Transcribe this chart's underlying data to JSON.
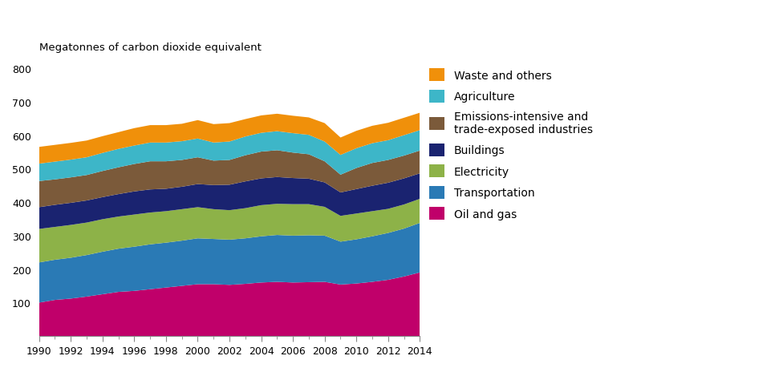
{
  "years": [
    1990,
    1991,
    1992,
    1993,
    1994,
    1995,
    1996,
    1997,
    1998,
    1999,
    2000,
    2001,
    2002,
    2003,
    2004,
    2005,
    2006,
    2007,
    2008,
    2009,
    2010,
    2011,
    2012,
    2013,
    2014
  ],
  "oil_and_gas": [
    100,
    108,
    112,
    118,
    125,
    132,
    135,
    140,
    145,
    150,
    155,
    155,
    153,
    156,
    160,
    162,
    160,
    161,
    162,
    154,
    157,
    162,
    168,
    178,
    190
  ],
  "transportation": [
    120,
    120,
    122,
    124,
    127,
    129,
    132,
    134,
    134,
    135,
    137,
    135,
    135,
    136,
    138,
    140,
    140,
    140,
    138,
    128,
    132,
    136,
    140,
    143,
    148
  ],
  "electricity": [
    100,
    98,
    98,
    97,
    97,
    96,
    96,
    95,
    94,
    94,
    93,
    89,
    88,
    90,
    93,
    93,
    94,
    93,
    86,
    77,
    77,
    75,
    72,
    72,
    72
  ],
  "buildings": [
    65,
    66,
    66,
    66,
    66,
    67,
    69,
    69,
    67,
    67,
    69,
    72,
    76,
    80,
    80,
    80,
    78,
    76,
    73,
    70,
    73,
    76,
    78,
    78,
    76
  ],
  "emit_industries": [
    78,
    76,
    76,
    76,
    78,
    80,
    82,
    84,
    82,
    80,
    80,
    73,
    74,
    78,
    80,
    80,
    76,
    73,
    63,
    53,
    63,
    68,
    68,
    68,
    68
  ],
  "agriculture": [
    52,
    53,
    53,
    53,
    54,
    55,
    55,
    56,
    56,
    56,
    56,
    54,
    55,
    56,
    56,
    57,
    58,
    58,
    59,
    59,
    59,
    59,
    59,
    61,
    61
  ],
  "waste_and_others": [
    50,
    50,
    50,
    50,
    50,
    50,
    52,
    52,
    52,
    52,
    55,
    55,
    55,
    52,
    52,
    52,
    52,
    52,
    55,
    52,
    52,
    52,
    52,
    52,
    52
  ],
  "colors": {
    "oil_and_gas": "#c0006a",
    "transportation": "#2a7ab5",
    "electricity": "#8db248",
    "buildings": "#1a2370",
    "emit_industries": "#7b5a3a",
    "agriculture": "#3db6c8",
    "waste_and_others": "#f0900a"
  },
  "labels": {
    "oil_and_gas": "Oil and gas",
    "transportation": "Transportation",
    "electricity": "Electricity",
    "buildings": "Buildings",
    "emit_industries": "Emissions-intensive and\ntrade-exposed industries",
    "agriculture": "Agriculture",
    "waste_and_others": "Waste and others"
  },
  "ylabel": "Megatonnes of carbon dioxide equivalent",
  "ylim": [
    0,
    800
  ],
  "yticks": [
    0,
    100,
    200,
    300,
    400,
    500,
    600,
    700,
    800
  ],
  "background_color": "#ffffff"
}
